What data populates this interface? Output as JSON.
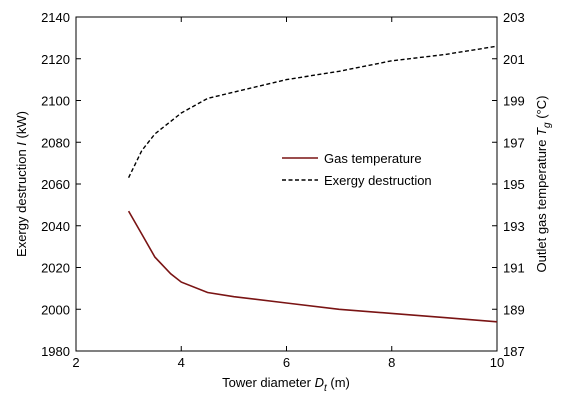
{
  "chart_data": {
    "type": "line",
    "x_axis": {
      "label_text": "Tower diameter ",
      "label_symbol": "D",
      "label_sub": "t",
      "label_unit": " (m)",
      "range": [
        2,
        10
      ],
      "ticks": [
        2,
        4,
        6,
        8,
        10
      ],
      "tick_labels": [
        "2",
        "4",
        "6",
        "8",
        "10"
      ]
    },
    "y_left_axis": {
      "label_text": "Exergy destruction ",
      "label_symbol": "I",
      "label_unit": " (kW)",
      "range": [
        1980,
        2140
      ],
      "ticks": [
        1980,
        2000,
        2020,
        2040,
        2060,
        2080,
        2100,
        2120,
        2140
      ],
      "tick_labels": [
        "1980",
        "2000",
        "2020",
        "2040",
        "2060",
        "2080",
        "2100",
        "2120",
        "2140"
      ]
    },
    "y_right_axis": {
      "label_text": "Outlet gas temperature ",
      "label_symbol": "T",
      "label_sub": "g",
      "label_unit": " (°C)",
      "range": [
        187,
        203
      ],
      "ticks": [
        187,
        189,
        191,
        193,
        195,
        197,
        199,
        201,
        203
      ],
      "tick_labels": [
        "187",
        "189",
        "191",
        "193",
        "195",
        "197",
        "199",
        "201",
        "203"
      ]
    },
    "series": [
      {
        "name": "Gas temperature",
        "axis": "right",
        "color": "#7a1414",
        "style": "solid",
        "x": [
          3.0,
          3.25,
          3.5,
          3.8,
          4.0,
          4.5,
          5.0,
          6.0,
          7.0,
          8.0,
          9.0,
          10.0
        ],
        "y": [
          193.7,
          192.6,
          191.5,
          190.7,
          190.3,
          189.8,
          189.6,
          189.3,
          189.0,
          188.8,
          188.6,
          188.4
        ]
      },
      {
        "name": "Exergy destruction",
        "axis": "left",
        "color": "#000000",
        "style": "dashed",
        "x": [
          3.0,
          3.25,
          3.5,
          3.8,
          4.0,
          4.5,
          5.0,
          6.0,
          7.0,
          8.0,
          9.0,
          10.0
        ],
        "y": [
          2063,
          2076,
          2084,
          2090,
          2094,
          2101,
          2104,
          2110,
          2114,
          2119,
          2122,
          2126
        ]
      }
    ],
    "legend": {
      "position": "center-right",
      "entries": [
        "Gas temperature",
        "Exergy destruction"
      ]
    },
    "grid": false
  }
}
